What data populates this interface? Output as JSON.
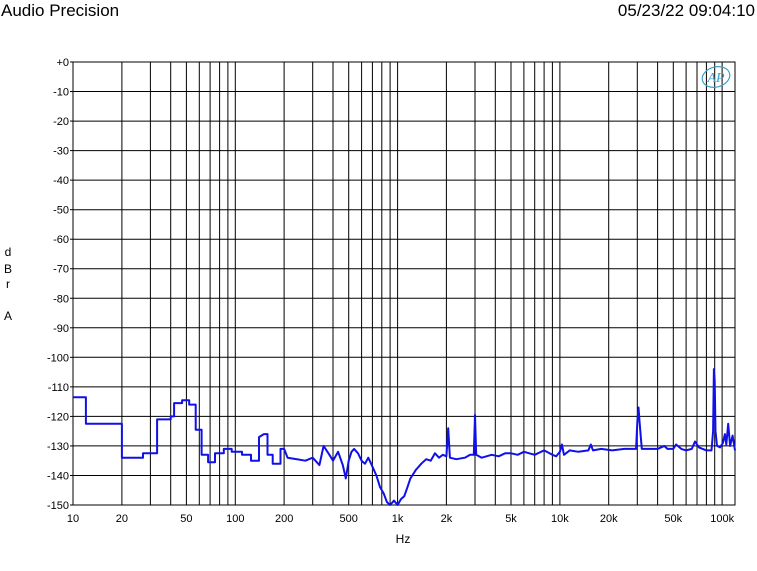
{
  "header": {
    "title": "Audio Precision",
    "timestamp": "05/23/22 09:04:10"
  },
  "logo": {
    "text": "AP"
  },
  "colors": {
    "trace": "#1010e8",
    "grid": "#000000",
    "logo": "#3aa0c8"
  },
  "chart_data": {
    "type": "line",
    "xscale": "log",
    "xlim": [
      10,
      120000
    ],
    "ylim": [
      -150,
      0
    ],
    "xlabel": "Hz",
    "ylabel": [
      "d",
      "B",
      "r",
      "",
      "A"
    ],
    "grid": true,
    "x_tick_labels": [
      {
        "v": 10,
        "t": "10"
      },
      {
        "v": 20,
        "t": "20"
      },
      {
        "v": 50,
        "t": "50"
      },
      {
        "v": 100,
        "t": "100"
      },
      {
        "v": 200,
        "t": "200"
      },
      {
        "v": 500,
        "t": "500"
      },
      {
        "v": 1000,
        "t": "1k"
      },
      {
        "v": 2000,
        "t": "2k"
      },
      {
        "v": 5000,
        "t": "5k"
      },
      {
        "v": 10000,
        "t": "10k"
      },
      {
        "v": 20000,
        "t": "20k"
      },
      {
        "v": 50000,
        "t": "50k"
      },
      {
        "v": 100000,
        "t": "100k"
      }
    ],
    "y_tick_labels": [
      {
        "v": 0,
        "t": "+0"
      },
      {
        "v": -10,
        "t": "-10"
      },
      {
        "v": -20,
        "t": "-20"
      },
      {
        "v": -30,
        "t": "-30"
      },
      {
        "v": -40,
        "t": "-40"
      },
      {
        "v": -50,
        "t": "-50"
      },
      {
        "v": -60,
        "t": "-60"
      },
      {
        "v": -70,
        "t": "-70"
      },
      {
        "v": -80,
        "t": "-80"
      },
      {
        "v": -90,
        "t": "-90"
      },
      {
        "v": -100,
        "t": "-100"
      },
      {
        "v": -110,
        "t": "-110"
      },
      {
        "v": -120,
        "t": "-120"
      },
      {
        "v": -130,
        "t": "-130"
      },
      {
        "v": -140,
        "t": "-140"
      },
      {
        "v": -150,
        "t": "-150"
      }
    ],
    "series": [
      {
        "points": [
          [
            10,
            -113.5
          ],
          [
            12,
            -113.5
          ],
          [
            12,
            -122.5
          ],
          [
            20,
            -122.5
          ],
          [
            20,
            -134
          ],
          [
            27,
            -134
          ],
          [
            27,
            -132.5
          ],
          [
            33,
            -132.5
          ],
          [
            33,
            -121
          ],
          [
            40,
            -121
          ],
          [
            40,
            -120
          ],
          [
            42,
            -120
          ],
          [
            42,
            -115.5
          ],
          [
            47,
            -115.5
          ],
          [
            47,
            -114.5
          ],
          [
            52,
            -114.5
          ],
          [
            52,
            -116
          ],
          [
            57,
            -116
          ],
          [
            57,
            -124.5
          ],
          [
            62,
            -124.5
          ],
          [
            62,
            -133
          ],
          [
            68,
            -133
          ],
          [
            68,
            -135.5
          ],
          [
            75,
            -135.5
          ],
          [
            75,
            -132.5
          ],
          [
            85,
            -132.5
          ],
          [
            85,
            -131
          ],
          [
            95,
            -131
          ],
          [
            95,
            -132
          ],
          [
            110,
            -132
          ],
          [
            110,
            -133
          ],
          [
            125,
            -133
          ],
          [
            125,
            -135
          ],
          [
            140,
            -135
          ],
          [
            140,
            -127
          ],
          [
            150,
            -126
          ],
          [
            158,
            -126
          ],
          [
            158,
            -133
          ],
          [
            170,
            -133
          ],
          [
            170,
            -136
          ],
          [
            190,
            -136
          ],
          [
            190,
            -131
          ],
          [
            200,
            -131
          ],
          [
            210,
            -134
          ],
          [
            240,
            -134.5
          ],
          [
            270,
            -135
          ],
          [
            300,
            -134
          ],
          [
            330,
            -136.5
          ],
          [
            350,
            -130
          ],
          [
            380,
            -133
          ],
          [
            400,
            -135
          ],
          [
            430,
            -132
          ],
          [
            460,
            -136.5
          ],
          [
            480,
            -141
          ],
          [
            500,
            -135
          ],
          [
            520,
            -132
          ],
          [
            540,
            -131
          ],
          [
            570,
            -132.5
          ],
          [
            600,
            -135
          ],
          [
            630,
            -136
          ],
          [
            660,
            -134
          ],
          [
            700,
            -137
          ],
          [
            740,
            -140
          ],
          [
            780,
            -144
          ],
          [
            820,
            -146
          ],
          [
            860,
            -149
          ],
          [
            900,
            -150
          ],
          [
            950,
            -148.5
          ],
          [
            1000,
            -150
          ],
          [
            1050,
            -148
          ],
          [
            1100,
            -147
          ],
          [
            1150,
            -144
          ],
          [
            1200,
            -141
          ],
          [
            1300,
            -138
          ],
          [
            1400,
            -136
          ],
          [
            1500,
            -134.5
          ],
          [
            1600,
            -135
          ],
          [
            1700,
            -132.5
          ],
          [
            1800,
            -134
          ],
          [
            1900,
            -133
          ],
          [
            2000,
            -133.5
          ],
          [
            2050,
            -124
          ],
          [
            2100,
            -134
          ],
          [
            2300,
            -134.5
          ],
          [
            2600,
            -134
          ],
          [
            2800,
            -133
          ],
          [
            2950,
            -133
          ],
          [
            3000,
            -119.5
          ],
          [
            3050,
            -133
          ],
          [
            3300,
            -134
          ],
          [
            3800,
            -133
          ],
          [
            4200,
            -133.5
          ],
          [
            4600,
            -132.5
          ],
          [
            5000,
            -132.5
          ],
          [
            5500,
            -133
          ],
          [
            6000,
            -132
          ],
          [
            7000,
            -133
          ],
          [
            8000,
            -131.5
          ],
          [
            9000,
            -133
          ],
          [
            9500,
            -133.5
          ],
          [
            10000,
            -132
          ],
          [
            10300,
            -129.5
          ],
          [
            10600,
            -133
          ],
          [
            11500,
            -131.5
          ],
          [
            13000,
            -132
          ],
          [
            15000,
            -131.5
          ],
          [
            15500,
            -129.5
          ],
          [
            16000,
            -131.5
          ],
          [
            18000,
            -131
          ],
          [
            21000,
            -131.5
          ],
          [
            25000,
            -131
          ],
          [
            28000,
            -131
          ],
          [
            29500,
            -131
          ],
          [
            30000,
            -122
          ],
          [
            30500,
            -117
          ],
          [
            31000,
            -122
          ],
          [
            32000,
            -131
          ],
          [
            35000,
            -131
          ],
          [
            40000,
            -131
          ],
          [
            44000,
            -130
          ],
          [
            46000,
            -131
          ],
          [
            50000,
            -131
          ],
          [
            52000,
            -129.5
          ],
          [
            56000,
            -131
          ],
          [
            60000,
            -131.5
          ],
          [
            65000,
            -131
          ],
          [
            68000,
            -128.5
          ],
          [
            72000,
            -130.5
          ],
          [
            80000,
            -131.5
          ],
          [
            86000,
            -131.5
          ],
          [
            88000,
            -125
          ],
          [
            89000,
            -104
          ],
          [
            90000,
            -108
          ],
          [
            91000,
            -125
          ],
          [
            93000,
            -130
          ],
          [
            97000,
            -130.5
          ],
          [
            101000,
            -129
          ],
          [
            104000,
            -126
          ],
          [
            106000,
            -129.5
          ],
          [
            109000,
            -122.5
          ],
          [
            112000,
            -130
          ],
          [
            116000,
            -126.5
          ],
          [
            120000,
            -131.5
          ]
        ]
      }
    ]
  }
}
